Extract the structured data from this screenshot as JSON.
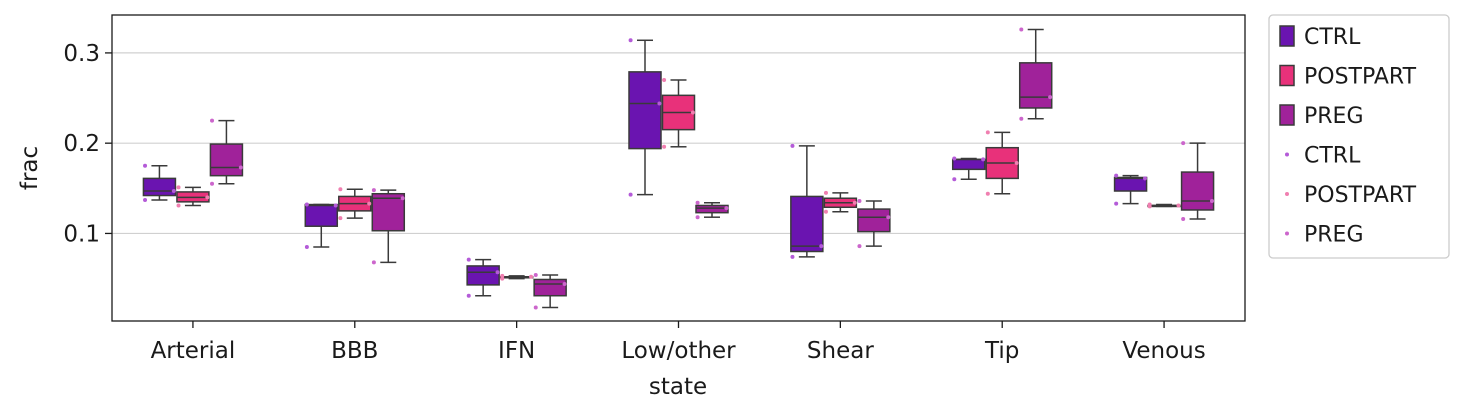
{
  "chart_data": {
    "type": "box",
    "xlabel": "state",
    "ylabel": "frac",
    "ylim": [
      0.003,
      0.342
    ],
    "yticks": [
      0.1,
      0.2,
      0.3
    ],
    "ytick_labels": [
      "0.1",
      "0.2",
      "0.3"
    ],
    "grid": "horizontal",
    "legend_position": "outside-right",
    "categories": [
      "Arterial",
      "BBB",
      "IFN",
      "Low/other",
      "Shear",
      "Tip",
      "Venous"
    ],
    "series": [
      {
        "name": "CTRL",
        "color": "#6a14b0",
        "dot_color": "#b45bd8",
        "boxes": [
          {
            "whislo": 0.137,
            "q1": 0.142,
            "med": 0.147,
            "q3": 0.161,
            "whishi": 0.175
          },
          {
            "whislo": 0.085,
            "q1": 0.108,
            "med": 0.131,
            "q3": 0.132,
            "whishi": 0.132
          },
          {
            "whislo": 0.031,
            "q1": 0.043,
            "med": 0.057,
            "q3": 0.064,
            "whishi": 0.071
          },
          {
            "whislo": 0.143,
            "q1": 0.194,
            "med": 0.244,
            "q3": 0.279,
            "whishi": 0.314
          },
          {
            "whislo": 0.074,
            "q1": 0.08,
            "med": 0.086,
            "q3": 0.141,
            "whishi": 0.197
          },
          {
            "whislo": 0.16,
            "q1": 0.171,
            "med": 0.182,
            "q3": 0.182,
            "whishi": 0.183
          },
          {
            "whislo": 0.133,
            "q1": 0.147,
            "med": 0.161,
            "q3": 0.162,
            "whishi": 0.164
          }
        ],
        "points": [
          [
            0.175,
            0.147,
            0.137
          ],
          [
            0.132,
            0.131,
            0.085
          ],
          [
            0.071,
            0.057,
            0.031
          ],
          [
            0.314,
            0.244,
            0.143
          ],
          [
            0.197,
            0.086,
            0.074
          ],
          [
            0.183,
            0.182,
            0.16
          ],
          [
            0.164,
            0.161,
            0.133
          ]
        ]
      },
      {
        "name": "POSTPART",
        "color": "#e8317a",
        "dot_color": "#f07fb0",
        "boxes": [
          {
            "whislo": 0.131,
            "q1": 0.135,
            "med": 0.14,
            "q3": 0.146,
            "whishi": 0.151
          },
          {
            "whislo": 0.117,
            "q1": 0.125,
            "med": 0.133,
            "q3": 0.141,
            "whishi": 0.149
          },
          {
            "whislo": 0.05,
            "q1": 0.051,
            "med": 0.052,
            "q3": 0.052,
            "whishi": 0.053
          },
          {
            "whislo": 0.196,
            "q1": 0.215,
            "med": 0.234,
            "q3": 0.253,
            "whishi": 0.27
          },
          {
            "whislo": 0.124,
            "q1": 0.129,
            "med": 0.134,
            "q3": 0.139,
            "whishi": 0.145
          },
          {
            "whislo": 0.144,
            "q1": 0.161,
            "med": 0.178,
            "q3": 0.195,
            "whishi": 0.212
          },
          {
            "whislo": 0.13,
            "q1": 0.13,
            "med": 0.131,
            "q3": 0.131,
            "whishi": 0.132
          }
        ],
        "points": [
          [
            0.151,
            0.14,
            0.131
          ],
          [
            0.149,
            0.133,
            0.117
          ],
          [
            0.053,
            0.052,
            0.05
          ],
          [
            0.27,
            0.234,
            0.196
          ],
          [
            0.145,
            0.134,
            0.124
          ],
          [
            0.212,
            0.178,
            0.144
          ],
          [
            0.132,
            0.131,
            0.13
          ]
        ]
      },
      {
        "name": "PREG",
        "color": "#a0229a",
        "dot_color": "#cc66cc",
        "boxes": [
          {
            "whislo": 0.155,
            "q1": 0.164,
            "med": 0.173,
            "q3": 0.199,
            "whishi": 0.225
          },
          {
            "whislo": 0.068,
            "q1": 0.103,
            "med": 0.139,
            "q3": 0.144,
            "whishi": 0.148
          },
          {
            "whislo": 0.018,
            "q1": 0.031,
            "med": 0.044,
            "q3": 0.049,
            "whishi": 0.054
          },
          {
            "whislo": 0.118,
            "q1": 0.123,
            "med": 0.128,
            "q3": 0.131,
            "whishi": 0.134
          },
          {
            "whislo": 0.086,
            "q1": 0.102,
            "med": 0.118,
            "q3": 0.127,
            "whishi": 0.136
          },
          {
            "whislo": 0.227,
            "q1": 0.239,
            "med": 0.251,
            "q3": 0.289,
            "whishi": 0.326
          },
          {
            "whislo": 0.116,
            "q1": 0.126,
            "med": 0.136,
            "q3": 0.168,
            "whishi": 0.2
          }
        ],
        "points": [
          [
            0.225,
            0.173,
            0.155
          ],
          [
            0.148,
            0.139,
            0.068
          ],
          [
            0.054,
            0.044,
            0.018
          ],
          [
            0.134,
            0.128,
            0.118
          ],
          [
            0.136,
            0.118,
            0.086
          ],
          [
            0.326,
            0.251,
            0.227
          ],
          [
            0.2,
            0.136,
            0.116
          ]
        ]
      }
    ],
    "legend": [
      {
        "label": "CTRL",
        "kind": "box",
        "color": "#6a14b0"
      },
      {
        "label": "POSTPART",
        "kind": "box",
        "color": "#e8317a"
      },
      {
        "label": "PREG",
        "kind": "box",
        "color": "#a0229a"
      },
      {
        "label": "CTRL",
        "kind": "dot",
        "color": "#b45bd8"
      },
      {
        "label": "POSTPART",
        "kind": "dot",
        "color": "#f07fb0"
      },
      {
        "label": "PREG",
        "kind": "dot",
        "color": "#cc66cc"
      }
    ]
  }
}
